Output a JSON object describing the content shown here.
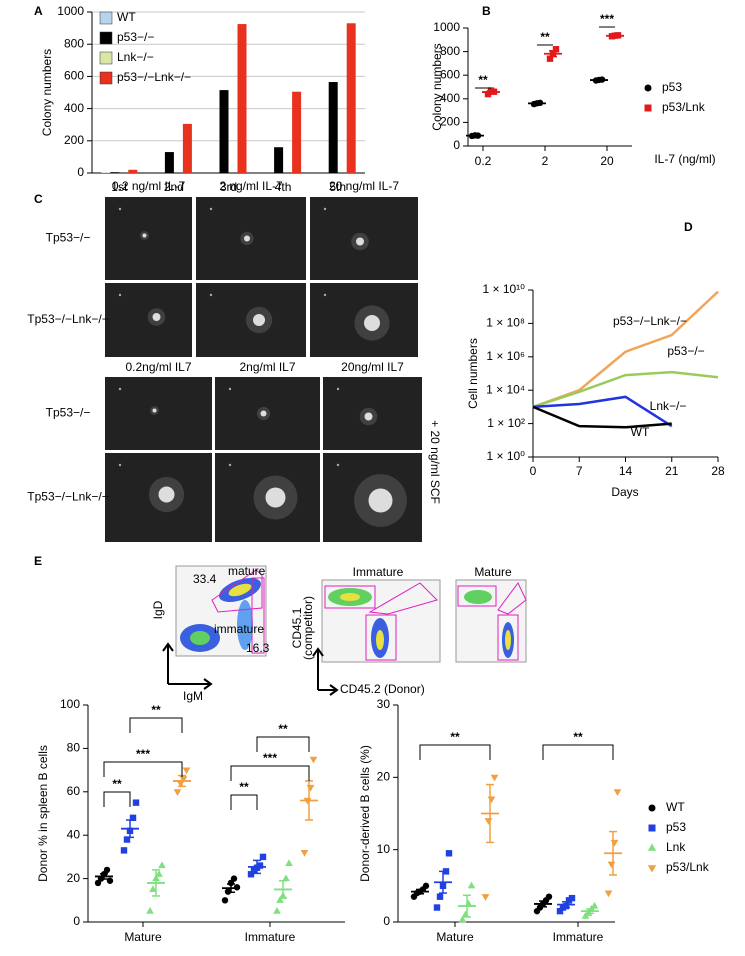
{
  "chart_data": [
    {
      "type": "bar",
      "label": "A",
      "ylabel": "Colony numbers",
      "categories": [
        "1st",
        "2nd",
        "3rd",
        "4th",
        "5th"
      ],
      "series": [
        {
          "name": "WT",
          "color": "#b8d3ec",
          "values": [
            3,
            0,
            0,
            0,
            0
          ]
        },
        {
          "name": "p53−/−",
          "color": "#000000",
          "values": [
            5,
            130,
            515,
            160,
            565
          ]
        },
        {
          "name": "Lnk−/−",
          "color": "#d8e6a6",
          "values": [
            0,
            0,
            0,
            0,
            0
          ]
        },
        {
          "name": "p53−/−Lnk−/−",
          "color": "#e8321e",
          "values": [
            20,
            305,
            925,
            505,
            930
          ]
        }
      ],
      "ylim": [
        0,
        1000
      ],
      "yticks": [
        0,
        200,
        400,
        600,
        800,
        1000
      ],
      "grid": true,
      "legend": "upper left"
    },
    {
      "type": "dot",
      "label": "B",
      "ylabel": "Colony numbers",
      "xlabel": "IL-7 (ng/ml)",
      "categories": [
        "0.2",
        "2",
        "20"
      ],
      "series": [
        {
          "name": "p53",
          "color": "#000000",
          "marker": "circle",
          "points": [
            [
              85,
              90,
              88
            ],
            [
              355,
              362,
              366
            ],
            [
              555,
              560,
              563
            ]
          ],
          "values": [
            88,
            361,
            559
          ],
          "errors": [
            5,
            8,
            5
          ]
        },
        {
          "name": "p53/Lnk",
          "color": "#e31a1c",
          "marker": "square",
          "points": [
            [
              440,
              470,
              460
            ],
            [
              740,
              785,
              820
            ],
            [
              930,
              935,
              938
            ]
          ],
          "values": [
            457,
            782,
            934
          ],
          "errors": [
            10,
            25,
            3
          ]
        }
      ],
      "annotations": [
        "**",
        "**",
        "***"
      ],
      "ylim": [
        0,
        1000
      ],
      "yticks": [
        0,
        200,
        400,
        600,
        800,
        1000
      ],
      "legend": "right"
    },
    {
      "type": "line",
      "label": "D",
      "ylabel": "Cell numbers",
      "xlabel": "Days",
      "x": [
        0,
        7,
        14,
        21,
        28
      ],
      "xlim": [
        0,
        28
      ],
      "xticks": [
        0,
        7,
        14,
        21,
        28
      ],
      "series": [
        {
          "name": "p53−/−Lnk−/−",
          "color": "#f2a55a",
          "values": [
            1000,
            10000,
            2000000,
            20000000,
            8000000000
          ]
        },
        {
          "name": "p53−/−",
          "color": "#9acb5a",
          "values": [
            1000,
            8000,
            80000,
            120000,
            60000
          ]
        },
        {
          "name": "Lnk−/−",
          "color": "#2233e0",
          "values": [
            1000,
            1500,
            4000,
            70,
            null
          ]
        },
        {
          "name": "WT",
          "color": "#000000",
          "values": [
            1000,
            70,
            60,
            100,
            null
          ]
        }
      ],
      "yscale": "log",
      "ylim": [
        1,
        10000000000
      ],
      "yticks": [
        {
          "value": 1,
          "label": "1 × 10⁰"
        },
        {
          "value": 100,
          "label": "1 × 10²"
        },
        {
          "value": 10000,
          "label": "1 × 10⁴"
        },
        {
          "value": 1000000,
          "label": "1 × 10⁶"
        },
        {
          "value": 100000000,
          "label": "1 × 10⁸"
        },
        {
          "value": 10000000000,
          "label": "1 × 10¹⁰"
        }
      ]
    },
    {
      "type": "dot",
      "label": "E",
      "ylabel": "Donor % in spleen B cells",
      "categories": [
        "Mature",
        "Immature"
      ],
      "series": [
        {
          "name": "WT",
          "color": "#000000",
          "marker": "circle",
          "points": [
            [
              18,
              20,
              22,
              24,
              19
            ],
            [
              10,
              14,
              18,
              20,
              16
            ]
          ],
          "values": [
            21,
            15.6
          ],
          "errors": [
            1.2,
            1.9
          ]
        },
        {
          "name": "p53",
          "color": "#2040e0",
          "marker": "square",
          "points": [
            [
              33,
              38,
              42,
              48,
              55
            ],
            [
              22,
              24,
              25,
              26,
              30
            ]
          ],
          "values": [
            43,
            25.4
          ],
          "errors": [
            4,
            3
          ]
        },
        {
          "name": "Lnk",
          "color": "#7fe07f",
          "marker": "triangle",
          "points": [
            [
              5,
              15,
              20,
              22,
              26
            ],
            [
              5,
              10,
              12,
              20,
              27
            ]
          ],
          "values": [
            18,
            15
          ],
          "errors": [
            6,
            4
          ]
        },
        {
          "name": "p53/Lnk",
          "color": "#f0a040",
          "marker": "triangle-down",
          "points": [
            [
              60,
              64,
              66,
              70
            ],
            [
              32,
              56,
              62,
              75
            ]
          ],
          "values": [
            65,
            56
          ],
          "errors": [
            2.5,
            9
          ]
        }
      ],
      "annotations": [
        "**",
        "***",
        "**",
        "**",
        "***",
        "**"
      ],
      "ylim": [
        0,
        100
      ],
      "yticks": [
        0,
        20,
        40,
        60,
        80,
        100
      ]
    },
    {
      "type": "dot",
      "ylabel": "Donor-derived B cells (%)",
      "categories": [
        "Mature",
        "Immature"
      ],
      "series": [
        {
          "name": "WT",
          "color": "#000000",
          "marker": "circle",
          "points": [
            [
              3.5,
              4,
              4.2,
              4.5,
              5
            ],
            [
              1.5,
              2,
              2.5,
              3,
              3.5
            ]
          ],
          "values": [
            4.2,
            2.5
          ],
          "errors": [
            0.3,
            0.4
          ]
        },
        {
          "name": "p53",
          "color": "#2040e0",
          "marker": "square",
          "points": [
            [
              2,
              3.5,
              5,
              7,
              9.5
            ],
            [
              1.5,
              2,
              2.2,
              3,
              3.3
            ]
          ],
          "values": [
            5.5,
            2.4
          ],
          "errors": [
            1.5,
            0.4
          ]
        },
        {
          "name": "Lnk",
          "color": "#7fe07f",
          "marker": "triangle",
          "points": [
            [
              0.3,
              1,
              2.5,
              5
            ],
            [
              0.8,
              1.2,
              1.8,
              2.2
            ]
          ],
          "values": [
            2.2,
            1.5
          ],
          "errors": [
            1.5,
            0.3
          ]
        },
        {
          "name": "p53/Lnk",
          "color": "#f0a040",
          "marker": "triangle-down",
          "points": [
            [
              3.5,
              14,
              17,
              20
            ],
            [
              4,
              8,
              11,
              18
            ]
          ],
          "values": [
            15,
            9.5
          ],
          "errors": [
            4,
            3
          ]
        }
      ],
      "annotations": [
        "**",
        "**"
      ],
      "ylim": [
        0,
        30
      ],
      "yticks": [
        0,
        10,
        20,
        30
      ],
      "legend": "right"
    }
  ],
  "image_panels": {
    "label": "C",
    "top": {
      "columns": [
        "0.2 ng/ml IL-7",
        "2 ng/ml IL-7",
        "20 ng/ml IL-7"
      ],
      "rows": [
        "Tp53−/−",
        "Tp53−/−Lnk−/−"
      ]
    },
    "bottom": {
      "columns": [
        "0.2ng/ml IL7",
        "2ng/ml IL7",
        "20ng/ml IL7"
      ],
      "rows": [
        "Tp53−/−",
        "Tp53−/−Lnk−/−"
      ]
    },
    "side_note": "+ 20 ng/ml SCF"
  },
  "flow_plots": {
    "gates": [
      "33.4",
      "mature",
      "immature",
      "16.3"
    ],
    "y_axis": "IgD",
    "x_axis": "IgM",
    "titles": [
      "Immature",
      "Mature"
    ],
    "y_axis_2": [
      "CD45.1",
      "(competitor)"
    ],
    "x_axis_2": "CD45.2 (Donor)"
  }
}
